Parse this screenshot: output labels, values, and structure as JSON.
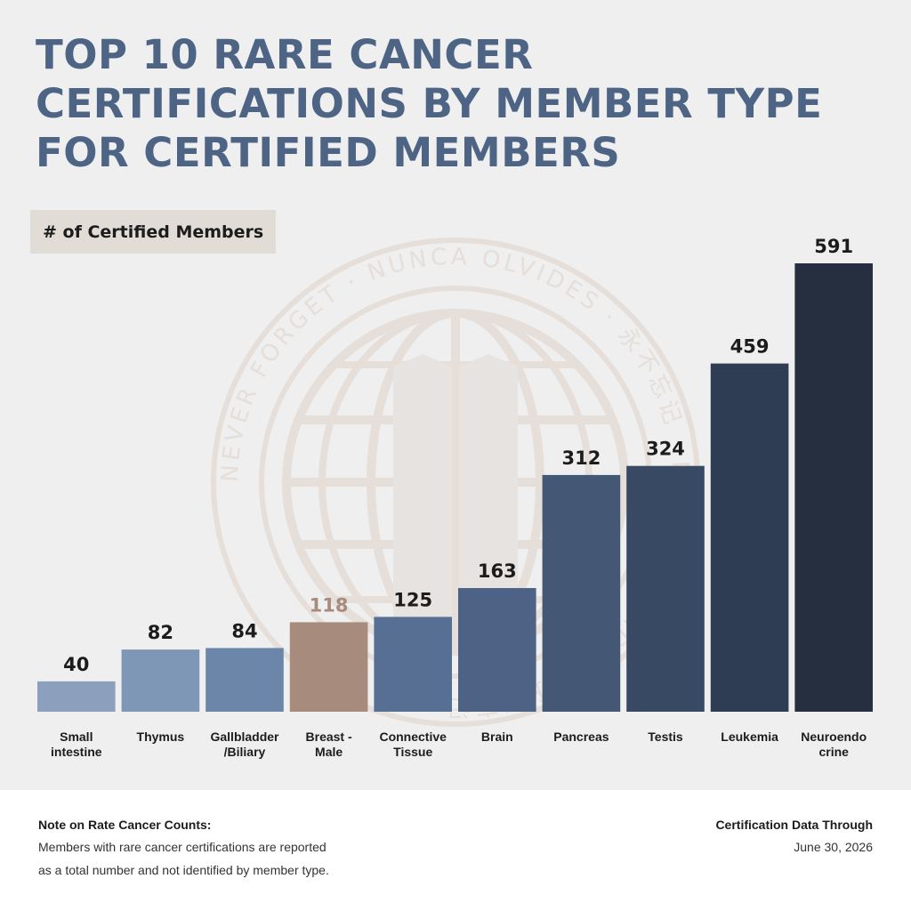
{
  "title_lines": [
    "TOP 10 RARE CANCER",
    "CERTIFICATIONS BY MEMBER TYPE",
    "FOR CERTIFIED MEMBERS"
  ],
  "watermark": {
    "text": "NEVER FORGET · NUNCA OLVIDES · 永不忘记 · NUNCA OLVIDES · 永不忘记"
  },
  "chart_data": {
    "type": "bar",
    "ylabel": "# of Certified Members",
    "categories": [
      [
        "Small",
        "intestine"
      ],
      [
        "Thymus"
      ],
      [
        "Gallbladder",
        "/Biliary"
      ],
      [
        "Breast -",
        "Male"
      ],
      [
        "Connective",
        "Tissue"
      ],
      [
        "Brain"
      ],
      [
        "Pancreas"
      ],
      [
        "Testis"
      ],
      [
        "Leukemia"
      ],
      [
        "Neuroendo",
        "crine"
      ]
    ],
    "values": [
      40,
      82,
      84,
      118,
      125,
      163,
      312,
      324,
      459,
      591
    ],
    "colors": [
      "#8c9fbc",
      "#7f97b6",
      "#6c86aa",
      "#a78c7e",
      "#586f94",
      "#4d6284",
      "#445876",
      "#384964",
      "#2f3d54",
      "#252f3f"
    ],
    "value_label_colors": [
      "#1c1c1c",
      "#1c1c1c",
      "#1c1c1c",
      "#a78c7e",
      "#1c1c1c",
      "#1c1c1c",
      "#1c1c1c",
      "#1c1c1c",
      "#1c1c1c",
      "#1c1c1c"
    ],
    "ylim": [
      0,
      591
    ],
    "grid": false,
    "legend": "none"
  },
  "footer": {
    "note_heading": "Note on Rate Cancer Counts:",
    "note_lines": [
      "Members with rare cancer certifications are reported",
      "as a total number and not identified by member type."
    ],
    "data_heading": "Certification Data Through",
    "data_date": "June 30, 2026"
  }
}
